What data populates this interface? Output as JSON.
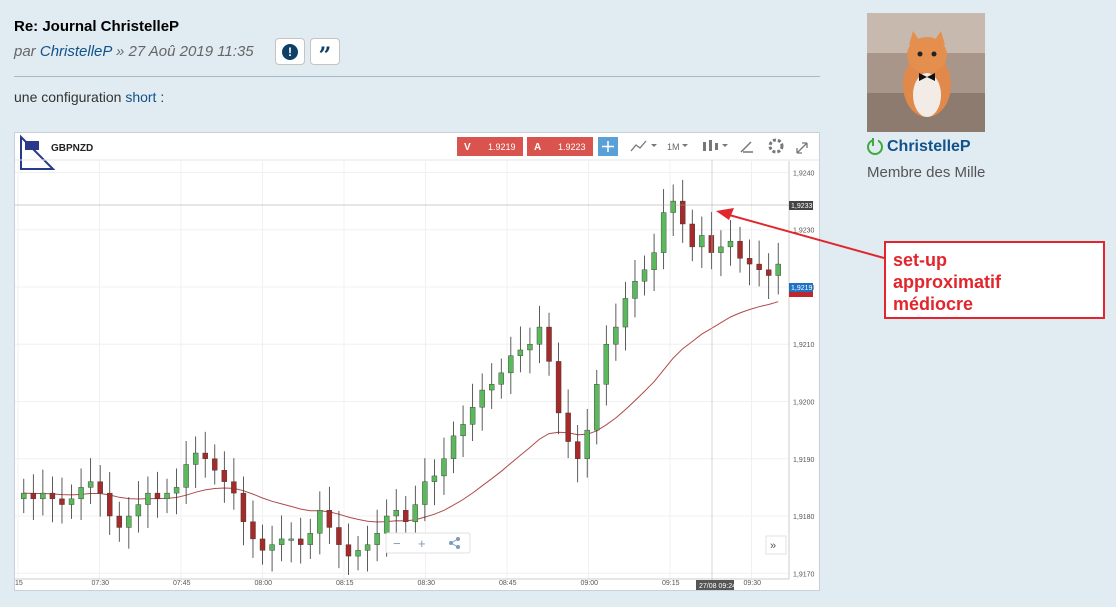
{
  "post": {
    "title": "Re: Journal ChristelleP",
    "by": "par",
    "author": "ChristelleP",
    "date": "» 27 Aoû 2019 11:35",
    "report_icon": "exclamation-icon",
    "quote_icon": "quote-icon",
    "content_prefix": "une configuration",
    "content_link": "short",
    "content_suffix": ":"
  },
  "profile": {
    "username": "ChristelleP",
    "rank": "Membre des Mille",
    "online_icon": "power-icon"
  },
  "chart_toolbar": {
    "symbol": "GBPNZD",
    "sell_label": "V",
    "sell_price": "1.9219",
    "buy_label": "A",
    "buy_price": "1.9223",
    "timeframe": "1M",
    "last_price_label": "1,9233",
    "current_price_label": "1,9219",
    "crosshair_time_label": "27/08 09:24"
  },
  "annotation": {
    "line1": "set-up",
    "line2": "approximatif",
    "line3": "médiocre"
  },
  "chart_data": {
    "type": "candlestick",
    "symbol": "GBPNZD",
    "y_ticks": [
      "1,9240",
      "1,9230",
      "1,9220",
      "1,9210",
      "1,9200",
      "1,9190",
      "1,9180",
      "1,9170"
    ],
    "y_tick_values": [
      1.924,
      1.923,
      1.922,
      1.921,
      1.92,
      1.919,
      1.918,
      1.917
    ],
    "x_ticks": [
      "15",
      "07:30",
      "07:45",
      "08:00",
      "08:15",
      "08:30",
      "08:45",
      "09:00",
      "09:15",
      "09:30"
    ],
    "ylim": [
      1.9169,
      1.9242
    ],
    "closes": [
      1.9184,
      1.9183,
      1.9184,
      1.9183,
      1.9182,
      1.9183,
      1.9185,
      1.9186,
      1.9184,
      1.918,
      1.9178,
      1.918,
      1.9182,
      1.9184,
      1.9183,
      1.9184,
      1.9185,
      1.9189,
      1.9191,
      1.919,
      1.9188,
      1.9186,
      1.9184,
      1.9179,
      1.9176,
      1.9174,
      1.9175,
      1.9176,
      1.9176,
      1.9175,
      1.9177,
      1.9181,
      1.9178,
      1.9175,
      1.9173,
      1.9174,
      1.9175,
      1.9177,
      1.918,
      1.9181,
      1.9179,
      1.9182,
      1.9186,
      1.9187,
      1.919,
      1.9194,
      1.9196,
      1.9199,
      1.9202,
      1.9203,
      1.9205,
      1.9208,
      1.9209,
      1.921,
      1.9213,
      1.9207,
      1.9198,
      1.9193,
      1.919,
      1.9195,
      1.9203,
      1.921,
      1.9213,
      1.9218,
      1.9221,
      1.9223,
      1.9226,
      1.9233,
      1.9235,
      1.9231,
      1.9227,
      1.9229,
      1.9226,
      1.9227,
      1.9228,
      1.9225,
      1.9224,
      1.9223,
      1.9222,
      1.9224
    ],
    "ma_note": "moving average line"
  }
}
